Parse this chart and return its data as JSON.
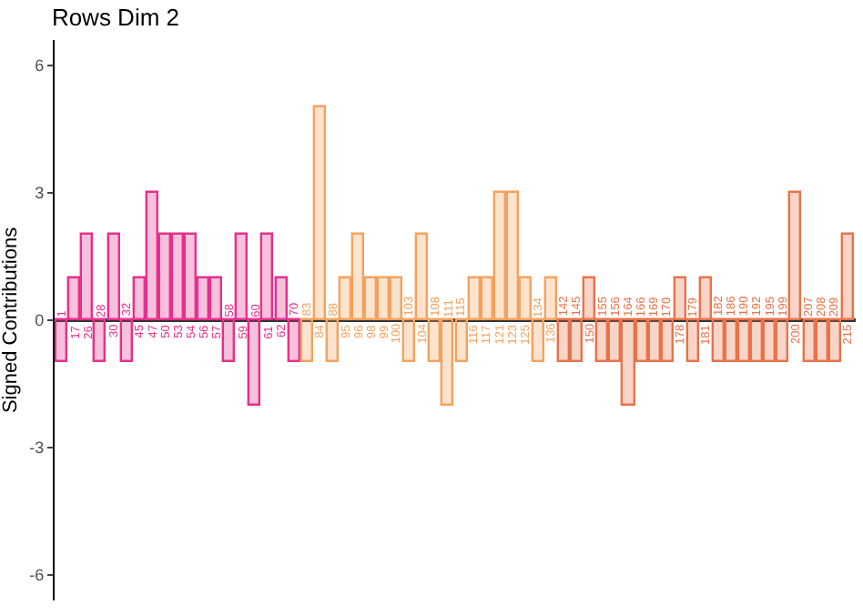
{
  "chart_data": {
    "type": "bar",
    "title": "Rows Dim 2",
    "ylabel": "Signed Contributions",
    "categories": [
      "1",
      "17",
      "26",
      "28",
      "30",
      "32",
      "45",
      "47",
      "50",
      "53",
      "54",
      "56",
      "57",
      "58",
      "59",
      "60",
      "61",
      "62",
      "70",
      "83",
      "84",
      "88",
      "95",
      "96",
      "98",
      "99",
      "100",
      "103",
      "104",
      "108",
      "111",
      "115",
      "116",
      "117",
      "121",
      "123",
      "125",
      "134",
      "136",
      "142",
      "145",
      "150",
      "155",
      "156",
      "164",
      "166",
      "169",
      "170",
      "178",
      "179",
      "181",
      "182",
      "186",
      "190",
      "192",
      "195",
      "199",
      "200",
      "207",
      "208",
      "209",
      "215"
    ],
    "values": [
      -1,
      1,
      2,
      -1,
      2,
      -1,
      1,
      3,
      2,
      2,
      2,
      1,
      1,
      -1,
      2,
      -2,
      2,
      1,
      -1,
      -1,
      5,
      -1,
      1,
      2,
      1,
      1,
      1,
      -1,
      2,
      -1,
      -2,
      -1,
      1,
      1,
      3,
      3,
      1,
      -1,
      1,
      -1,
      -1,
      1,
      -1,
      -1,
      -2,
      -1,
      -1,
      -1,
      1,
      -1,
      1,
      -1,
      -1,
      -1,
      -1,
      -1,
      -1,
      3,
      -1,
      -1,
      -1,
      2
    ],
    "colors": [
      "#e6308a",
      "#e6308a",
      "#e6308a",
      "#e6308a",
      "#e6308a",
      "#e6308a",
      "#e6308a",
      "#e6308a",
      "#e6308a",
      "#e6308a",
      "#e6308a",
      "#e6308a",
      "#e6308a",
      "#e6308a",
      "#e6308a",
      "#e6308a",
      "#e6308a",
      "#e6308a",
      "#e6308a",
      "#f5a25d",
      "#f5a25d",
      "#f5a25d",
      "#f5a25d",
      "#f5a25d",
      "#f5a25d",
      "#f5a25d",
      "#f5a25d",
      "#f5a25d",
      "#f5a25d",
      "#f5a25d",
      "#f5a25d",
      "#f5a25d",
      "#f5a25d",
      "#f5a25d",
      "#f5a25d",
      "#f5a25d",
      "#f5a25d",
      "#f5a25d",
      "#f5a25d",
      "#e8734a",
      "#e8734a",
      "#e8734a",
      "#e8734a",
      "#e8734a",
      "#e8734a",
      "#e8734a",
      "#e8734a",
      "#e8734a",
      "#e8734a",
      "#e8734a",
      "#e8734a",
      "#e8734a",
      "#e8734a",
      "#e8734a",
      "#e8734a",
      "#e8734a",
      "#e8734a",
      "#e8734a",
      "#e8734a",
      "#e8734a",
      "#e8734a",
      "#e8734a"
    ],
    "ylim": [
      -6.6,
      6.6
    ],
    "yticks": [
      -6,
      -3,
      0,
      3,
      6
    ],
    "grid": false,
    "legend": false
  }
}
